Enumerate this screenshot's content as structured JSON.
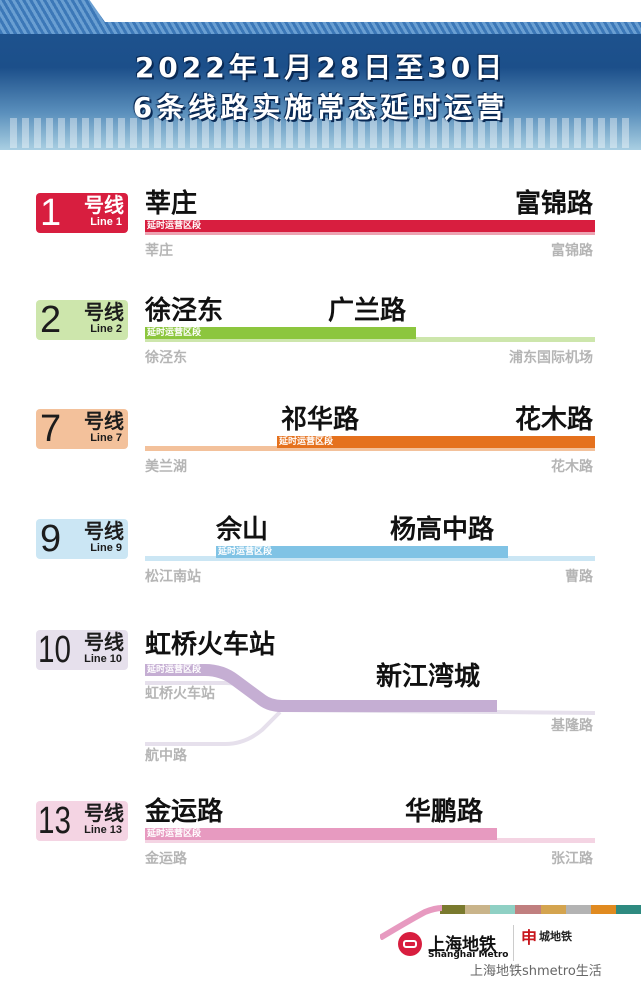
{
  "header": {
    "title_line1": "2022年1月28日至30日",
    "title_line2": "6条线路实施常态延时运营"
  },
  "segment_label": "延时运营区段",
  "lines": [
    {
      "num": "1",
      "name": "号线",
      "en": "Line 1",
      "color": "#d81e3f",
      "light": "#eda3b2",
      "text_color": "#ffffff",
      "from": "莘庄",
      "to": "富锦路",
      "term_start": "莘庄",
      "term_end": "富锦路"
    },
    {
      "num": "2",
      "name": "号线",
      "en": "Line 2",
      "color": "#8cc63e",
      "light": "#cde6ac",
      "text_color": "#1c1c1c",
      "from": "徐泾东",
      "to": "广兰路",
      "term_start": "徐泾东",
      "term_end": "浦东国际机场"
    },
    {
      "num": "7",
      "name": "号线",
      "en": "Line 7",
      "color": "#e5711d",
      "light": "#f3c19b",
      "text_color": "#1c1c1c",
      "from": "祁华路",
      "to": "花木路",
      "term_start": "美兰湖",
      "term_end": "花木路"
    },
    {
      "num": "9",
      "name": "号线",
      "en": "Line 9",
      "color": "#80c3e5",
      "light": "#cbe6f4",
      "text_color": "#1c1c1c",
      "from": "佘山",
      "to": "杨高中路",
      "term_start": "松江南站",
      "term_end": "曹路"
    },
    {
      "num": "10",
      "name": "号线",
      "en": "Line 10",
      "color": "#c5aed3",
      "light": "#e6e0ec",
      "text_color": "#1c1c1c",
      "from": "虹桥火车站",
      "to": "新江湾城",
      "term_start": "虹桥火车站",
      "term_branch": "航中路",
      "term_end": "基隆路"
    },
    {
      "num": "13",
      "name": "号线",
      "en": "Line 13",
      "color": "#e79ac0",
      "light": "#f4d4e3",
      "text_color": "#1c1c1c",
      "from": "金运路",
      "to": "华鹏路",
      "term_start": "金运路",
      "term_end": "张江路"
    }
  ],
  "footer": {
    "logo_cn": "上海地铁",
    "logo_en": "Shanghai Metro",
    "brand_mark": "申",
    "brand_name": "城地铁",
    "watermark": "上海地铁shmetro生活"
  }
}
